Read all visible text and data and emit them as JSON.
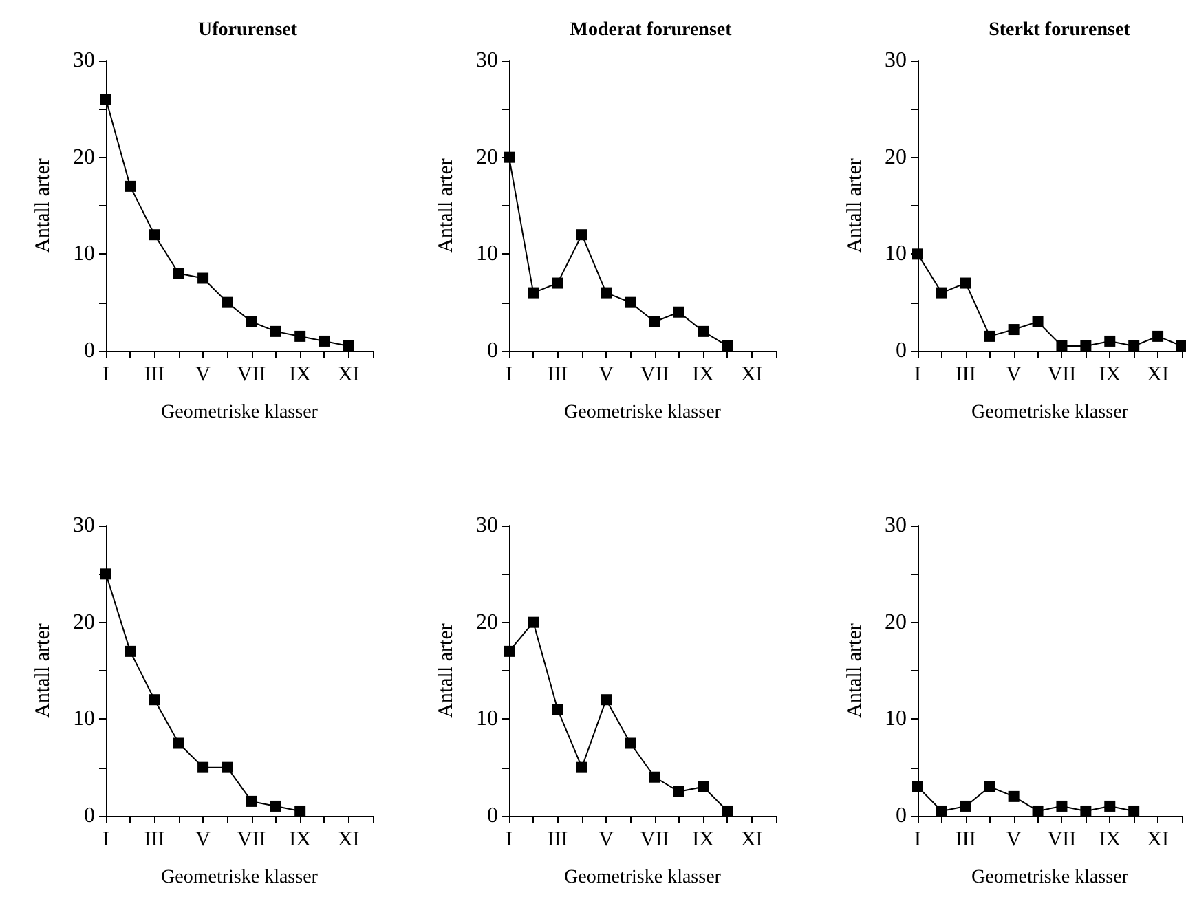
{
  "chart_data": [
    {
      "type": "line",
      "title": "Uforurenset",
      "xlabel": "Geometriske klasser",
      "ylabel": "Antall arter",
      "categories": [
        "I",
        null,
        "III",
        null,
        "V",
        null,
        "VII",
        null,
        "IX",
        null,
        "XI",
        null
      ],
      "values": [
        26,
        17,
        12,
        8,
        7.5,
        5,
        3,
        2,
        1.5,
        1,
        0.5,
        null
      ],
      "color": "#000000",
      "ylim": [
        0,
        30
      ],
      "yticks": [
        0,
        {
          "value": 5,
          "label": null
        },
        10,
        {
          "value": 15,
          "label": null
        },
        20,
        {
          "value": 25,
          "label": null
        },
        30
      ],
      "marker": "square",
      "line_style": "solid",
      "grid": false
    },
    {
      "type": "line",
      "title": "Moderat forurenset",
      "xlabel": "Geometriske klasser",
      "ylabel": "Antall arter",
      "categories": [
        "I",
        null,
        "III",
        null,
        "V",
        null,
        "VII",
        null,
        "IX",
        null,
        "XI",
        null
      ],
      "values": [
        20,
        6,
        7,
        12,
        6,
        5,
        3,
        4,
        2,
        0.5,
        null,
        null
      ],
      "color": "#000000",
      "ylim": [
        0,
        30
      ],
      "yticks": [
        0,
        {
          "value": 5,
          "label": null
        },
        10,
        {
          "value": 15,
          "label": null
        },
        20,
        {
          "value": 25,
          "label": null
        },
        30
      ],
      "marker": "square",
      "line_style": "solid",
      "grid": false
    },
    {
      "type": "line",
      "title": "Sterkt forurenset",
      "xlabel": "Geometriske klasser",
      "ylabel": "Antall arter",
      "categories": [
        "I",
        null,
        "III",
        null,
        "V",
        null,
        "VII",
        null,
        "IX",
        null,
        "XI",
        null
      ],
      "values": [
        10,
        6,
        7,
        1.5,
        2.2,
        3,
        0.5,
        0.5,
        1,
        0.5,
        1.5,
        0.5
      ],
      "color": "#000000",
      "ylim": [
        0,
        30
      ],
      "yticks": [
        0,
        {
          "value": 5,
          "label": null
        },
        10,
        {
          "value": 15,
          "label": null
        },
        20,
        {
          "value": 25,
          "label": null
        },
        30
      ],
      "marker": "square",
      "line_style": "solid",
      "grid": false
    },
    {
      "type": "line",
      "xlabel": "Geometriske klasser",
      "ylabel": "Antall arter",
      "categories": [
        "I",
        null,
        "III",
        null,
        "V",
        null,
        "VII",
        null,
        "IX",
        null,
        "XI",
        null
      ],
      "values": [
        25,
        17,
        12,
        7.5,
        5,
        5,
        1.5,
        1,
        0.5,
        null,
        null,
        null
      ],
      "color": "#000000",
      "ylim": [
        0,
        30
      ],
      "yticks": [
        0,
        {
          "value": 5,
          "label": null
        },
        10,
        {
          "value": 15,
          "label": null
        },
        20,
        {
          "value": 25,
          "label": null
        },
        30
      ],
      "marker": "square",
      "line_style": "solid",
      "grid": false
    },
    {
      "type": "line",
      "xlabel": "Geometriske klasser",
      "ylabel": "Antall arter",
      "categories": [
        "I",
        null,
        "III",
        null,
        "V",
        null,
        "VII",
        null,
        "IX",
        null,
        "XI",
        null
      ],
      "values": [
        17,
        20,
        11,
        5,
        12,
        7.5,
        4,
        2.5,
        3,
        0.5,
        null,
        null
      ],
      "color": "#000000",
      "ylim": [
        0,
        30
      ],
      "yticks": [
        0,
        {
          "value": 5,
          "label": null
        },
        10,
        {
          "value": 15,
          "label": null
        },
        20,
        {
          "value": 25,
          "label": null
        },
        30
      ],
      "marker": "square",
      "line_style": "solid",
      "grid": false
    },
    {
      "type": "line",
      "xlabel": "Geometriske klasser",
      "ylabel": "Antall arter",
      "categories": [
        "I",
        null,
        "III",
        null,
        "V",
        null,
        "VII",
        null,
        "IX",
        null,
        "XI",
        null
      ],
      "values": [
        3,
        0.5,
        1,
        3,
        2,
        0.5,
        1,
        0.5,
        1,
        0.5,
        null,
        null
      ],
      "color": "#000000",
      "ylim": [
        0,
        30
      ],
      "yticks": [
        0,
        {
          "value": 5,
          "label": null
        },
        10,
        {
          "value": 15,
          "label": null
        },
        20,
        {
          "value": 25,
          "label": null
        },
        30
      ],
      "marker": "square",
      "line_style": "solid",
      "grid": false
    }
  ]
}
